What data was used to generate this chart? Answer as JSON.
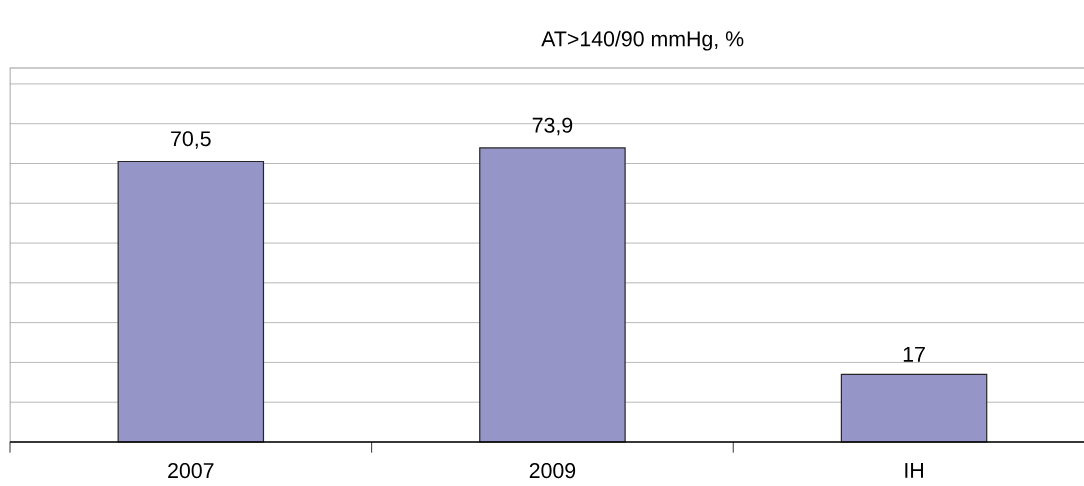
{
  "chart_data": {
    "type": "bar",
    "title": "AT>140/90 mmHg, %",
    "categories": [
      "2007",
      "2009",
      "IH"
    ],
    "values": [
      70.5,
      73.9,
      17
    ],
    "value_labels": [
      "70,5",
      "73,9",
      "17"
    ],
    "color": "#9595c8",
    "ylim": [
      0,
      94
    ],
    "yticks": [
      {
        "value": 0,
        "label": null
      },
      {
        "value": 10,
        "label": null
      },
      {
        "value": 20,
        "label": null
      },
      {
        "value": 30,
        "label": null
      },
      {
        "value": 40,
        "label": null
      },
      {
        "value": 50,
        "label": null
      },
      {
        "value": 60,
        "label": null
      },
      {
        "value": 70,
        "label": null
      },
      {
        "value": 80,
        "label": null
      },
      {
        "value": 90,
        "label": null
      }
    ],
    "grid": "y",
    "tick_labels": "x"
  }
}
